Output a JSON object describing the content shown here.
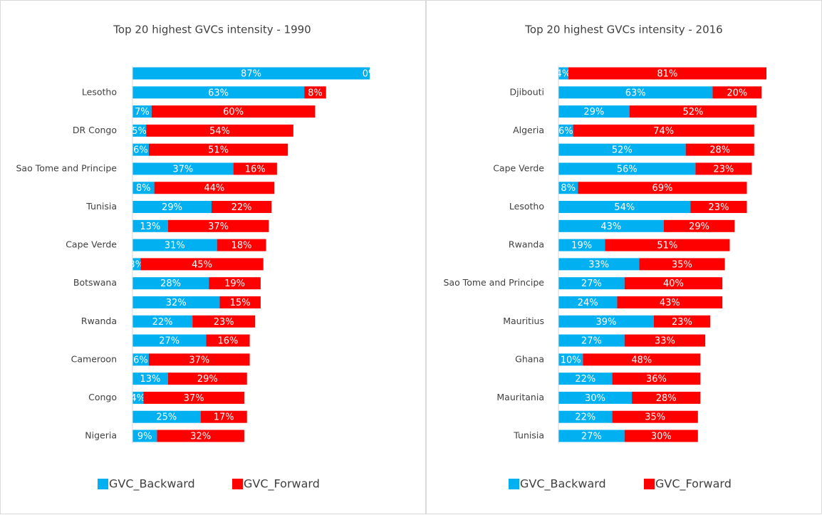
{
  "chart_data": [
    {
      "type": "bar",
      "orientation": "horizontal",
      "stacked": true,
      "title": "Top 20 highest GVCs intensity - 1990",
      "categories": [
        null,
        "Lesotho",
        null,
        "DR Congo",
        null,
        "Sao Tome and Principe",
        null,
        "Tunisia",
        null,
        "Cape Verde",
        null,
        "Botswana",
        null,
        "Rwanda",
        null,
        "Cameroon",
        null,
        "Congo",
        null,
        "Nigeria"
      ],
      "series": [
        {
          "name": "GVC_Backward",
          "color": "#00b0f0",
          "values": [
            87,
            63,
            7,
            5,
            6,
            37,
            8,
            29,
            13,
            31,
            3,
            28,
            32,
            22,
            27,
            6,
            13,
            4,
            25,
            9
          ],
          "value_labels": [
            "87%",
            "63%",
            "7%",
            "5%",
            "6%",
            "37%",
            "8%",
            "29%",
            "13%",
            "31%",
            "3%",
            "28%",
            "32%",
            "22%",
            "27%",
            "6%",
            "13%",
            "4%",
            "25%",
            "9%"
          ]
        },
        {
          "name": "GVC_Forward",
          "color": "#ff0000",
          "values": [
            0,
            8,
            60,
            54,
            51,
            16,
            44,
            22,
            37,
            18,
            45,
            19,
            15,
            23,
            16,
            37,
            29,
            37,
            17,
            32
          ],
          "value_labels": [
            "0%",
            "8%",
            "60%",
            "54%",
            "51%",
            "16%",
            "44%",
            "22%",
            "37%",
            "18%",
            "45%",
            "19%",
            "15%",
            "23%",
            "16%",
            "37%",
            "29%",
            "37%",
            "17%",
            "32%"
          ]
        }
      ],
      "legend": "bottom"
    },
    {
      "type": "bar",
      "orientation": "horizontal",
      "stacked": true,
      "title": "Top 20 highest GVCs intensity - 2016",
      "categories": [
        null,
        "Djibouti",
        null,
        "Algeria",
        null,
        "Cape Verde",
        null,
        "Lesotho",
        null,
        "Rwanda",
        null,
        "Sao Tome and Principe",
        null,
        "Mauritius",
        null,
        "Ghana",
        null,
        "Mauritania",
        null,
        "Tunisia"
      ],
      "series": [
        {
          "name": "GVC_Backward",
          "color": "#00b0f0",
          "values": [
            4,
            63,
            29,
            6,
            52,
            56,
            8,
            54,
            43,
            19,
            33,
            27,
            24,
            39,
            27,
            10,
            22,
            30,
            22,
            27
          ],
          "value_labels": [
            "4%",
            "63%",
            "29%",
            "6%",
            "52%",
            "56%",
            "8%",
            "54%",
            "43%",
            "19%",
            "33%",
            "27%",
            "24%",
            "39%",
            "27%",
            "10%",
            "22%",
            "30%",
            "22%",
            "27%"
          ]
        },
        {
          "name": "GVC_Forward",
          "color": "#ff0000",
          "values": [
            81,
            20,
            52,
            74,
            28,
            23,
            69,
            23,
            29,
            51,
            35,
            40,
            43,
            23,
            33,
            48,
            36,
            28,
            35,
            30
          ],
          "value_labels": [
            "81%",
            "20%",
            "52%",
            "74%",
            "28%",
            "23%",
            "69%",
            "23%",
            "29%",
            "51%",
            "35%",
            "40%",
            "43%",
            "23%",
            "33%",
            "48%",
            "36%",
            "28%",
            "35%",
            "30%"
          ]
        }
      ],
      "legend": "bottom"
    }
  ]
}
